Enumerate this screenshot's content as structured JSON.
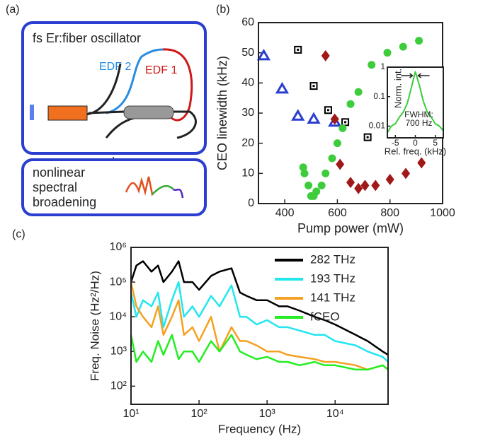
{
  "diagram": {
    "panel": "(a)",
    "oscillator": "fs Er:fiber oscillator",
    "edf2": "EDF 2",
    "edf1": "EDF 1",
    "broadening": [
      "nonlinear",
      "spectral",
      "broadening"
    ]
  },
  "chart_data": [
    {
      "type": "scatter",
      "panel": "(b)",
      "xlabel": "Pump power (mW)",
      "ylabel": "CEO linewidth (kHz)",
      "xlim": [
        300,
        1000
      ],
      "xticks": [
        400,
        600,
        800,
        1000
      ],
      "ylim": [
        0,
        60
      ],
      "yticks": [
        0,
        10,
        20,
        30,
        40,
        50,
        60
      ],
      "series": [
        {
          "marker": "triangle",
          "color": "#2a3fd0",
          "x": [
            320,
            390,
            450,
            510,
            590
          ],
          "values": [
            49,
            38,
            29,
            28,
            27
          ]
        },
        {
          "marker": "square",
          "color": "#000000",
          "x": [
            450,
            510,
            565,
            630,
            715
          ],
          "values": [
            51,
            39,
            31,
            27,
            22
          ]
        },
        {
          "marker": "diamond",
          "color": "#a01818",
          "x": [
            555,
            590,
            610,
            650,
            680,
            705,
            745,
            800,
            860,
            920
          ],
          "values": [
            49,
            28,
            13,
            7,
            5,
            6,
            6,
            8,
            10,
            13.5
          ]
        },
        {
          "marker": "circle",
          "color": "#3ccc3c",
          "x": [
            470,
            475,
            490,
            500,
            510,
            520,
            540,
            555,
            580,
            600,
            620,
            650,
            680,
            730,
            790,
            850,
            910
          ],
          "values": [
            12,
            10,
            6,
            2.5,
            2.5,
            4,
            6,
            10,
            15,
            20,
            25,
            33,
            37,
            46,
            50,
            52,
            54
          ]
        }
      ]
    },
    {
      "type": "line",
      "xlabel": "Rel. freq. (kHz)",
      "ylabel": "Norm. int.",
      "annotation": [
        "FWHM:",
        "700 Hz"
      ],
      "ylog": true,
      "xlim": [
        -7,
        7
      ],
      "xticks": [
        -5,
        0,
        5
      ],
      "ylim": [
        0.004,
        1
      ],
      "yticks": [
        0.01,
        0.1,
        1
      ],
      "x": [
        -7,
        -6,
        -5,
        -4,
        -3,
        -2,
        -1,
        0,
        1,
        2,
        3,
        4,
        5,
        6,
        7
      ],
      "series": [
        {
          "color": "#3ccc3c",
          "values": [
            0.006,
            0.01,
            0.012,
            0.02,
            0.03,
            0.06,
            0.2,
            0.7,
            0.25,
            0.07,
            0.03,
            0.02,
            0.012,
            0.01,
            0.007
          ]
        }
      ]
    },
    {
      "type": "line",
      "panel": "(c)",
      "xlabel": "Frequency (Hz)",
      "ylabel": "Freq. Noise (Hz²/Hz)",
      "xlog": true,
      "ylog": true,
      "legend": "upper right",
      "xlim": [
        10,
        60000
      ],
      "xticks": [
        {
          "value": 10,
          "label": "10¹"
        },
        {
          "value": 100,
          "label": "10²"
        },
        {
          "value": 1000,
          "label": "10³"
        },
        {
          "value": 10000,
          "label": "10⁴"
        }
      ],
      "ylim": [
        30,
        1000000
      ],
      "yticks": [
        {
          "value": 100,
          "label": "10²"
        },
        {
          "value": 1000,
          "label": "10³"
        },
        {
          "value": 10000,
          "label": "10⁴"
        },
        {
          "value": 100000,
          "label": "10⁵"
        },
        {
          "value": 1000000,
          "label": "10⁶"
        }
      ],
      "x": [
        10,
        12,
        15,
        20,
        25,
        30,
        40,
        50,
        60,
        80,
        100,
        150,
        200,
        300,
        400,
        500,
        700,
        1000,
        1500,
        2000,
        3000,
        5000,
        7000,
        10000,
        20000,
        30000,
        50000,
        60000
      ],
      "series": [
        {
          "name": "282 THz",
          "color": "#000000",
          "values": [
            100000,
            300000,
            400000,
            200000,
            300000,
            100000,
            200000,
            400000,
            100000,
            100000,
            60000,
            150000,
            200000,
            250000,
            50000,
            40000,
            30000,
            30000,
            20000,
            20000,
            15000,
            10000,
            8000,
            6000,
            3000,
            2000,
            1000,
            800
          ]
        },
        {
          "name": "193 THz",
          "color": "#22e6f0",
          "values": [
            50000,
            10000,
            30000,
            20000,
            50000,
            5000,
            30000,
            100000,
            10000,
            20000,
            10000,
            40000,
            20000,
            80000,
            10000,
            10000,
            6000,
            8000,
            5000,
            5000,
            4000,
            3000,
            3000,
            2000,
            1500,
            1000,
            700,
            500
          ]
        },
        {
          "name": "141 THz",
          "color": "#f5a020",
          "values": [
            100000,
            20000,
            10000,
            5000,
            20000,
            3000,
            10000,
            30000,
            3000,
            5000,
            2000,
            10000,
            1000,
            5000,
            2000,
            2000,
            1500,
            1000,
            1000,
            800,
            700,
            600,
            500,
            500,
            400,
            300,
            400,
            300
          ]
        },
        {
          "name": "fCEO",
          "color": "#22ee22",
          "values": [
            3000,
            500,
            1000,
            500,
            2000,
            800,
            3000,
            600,
            1000,
            1000,
            500,
            2000,
            1000,
            3000,
            1000,
            800,
            600,
            700,
            500,
            500,
            400,
            500,
            400,
            400,
            300,
            300,
            400,
            300
          ]
        }
      ]
    }
  ]
}
